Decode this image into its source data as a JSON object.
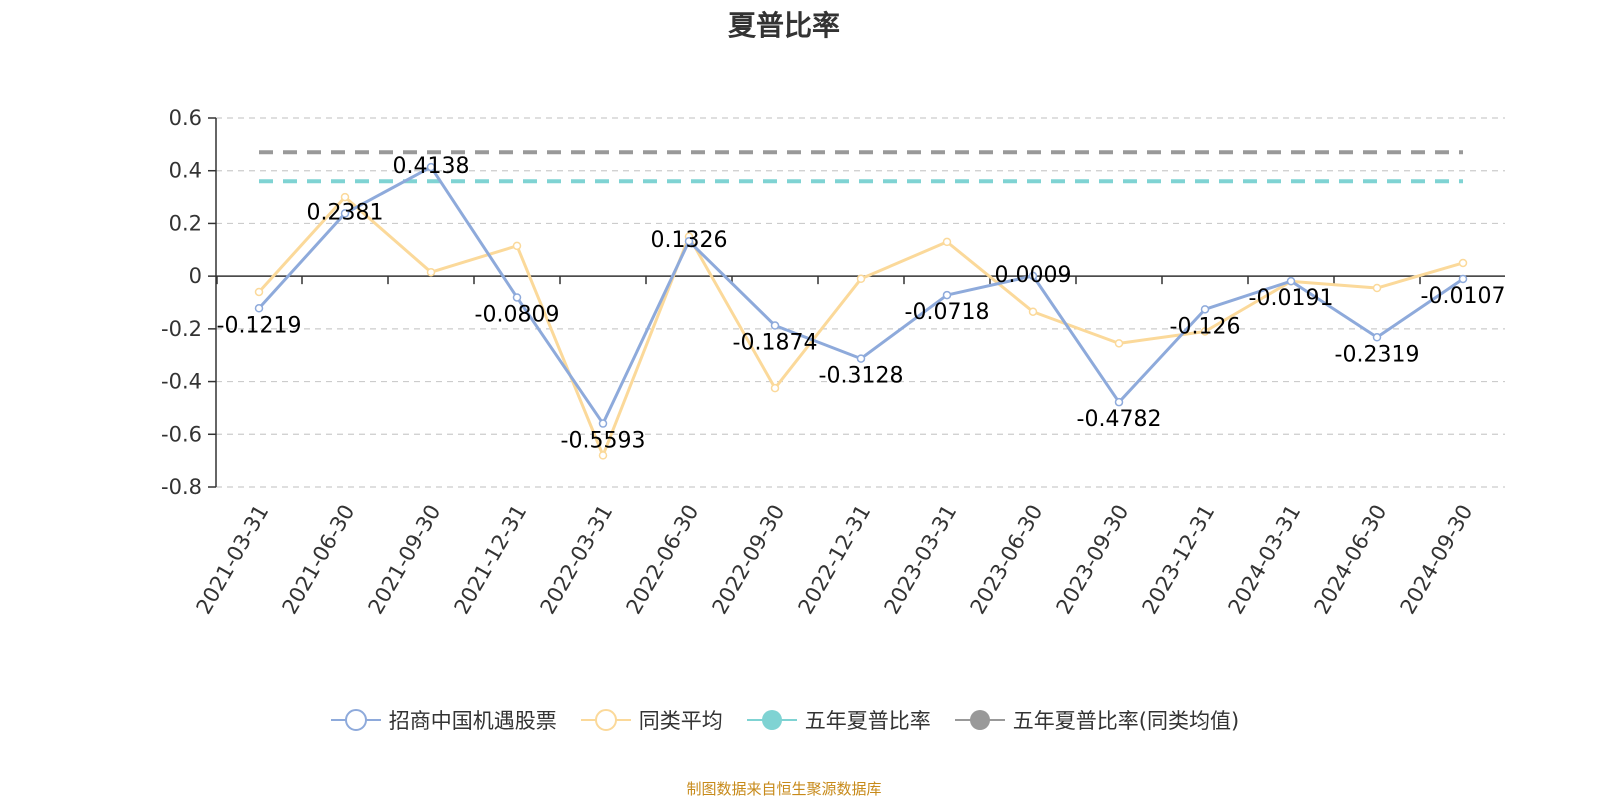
{
  "chart_data": {
    "type": "line",
    "title": "夏普比率",
    "categories": [
      "2021-03-31",
      "2021-06-30",
      "2021-09-30",
      "2021-12-31",
      "2022-03-31",
      "2022-06-30",
      "2022-09-30",
      "2022-12-31",
      "2023-03-31",
      "2023-06-30",
      "2023-09-30",
      "2023-12-31",
      "2024-03-31",
      "2024-06-30",
      "2024-09-30"
    ],
    "ylim": [
      -0.8,
      0.6
    ],
    "yticks": [
      "0.6",
      "0.4",
      "0.2",
      "0",
      "-0.2",
      "-0.4",
      "-0.6",
      "-0.8"
    ],
    "ytick_values": [
      0.6,
      0.4,
      0.2,
      0,
      -0.2,
      -0.4,
      -0.6,
      -0.8
    ],
    "grid": true,
    "legend_position": "bottom",
    "series": [
      {
        "name": "招商中国机遇股票",
        "color": "#8eaadb",
        "values": [
          -0.1219,
          0.2381,
          0.4138,
          -0.0809,
          -0.5593,
          0.1326,
          -0.1874,
          -0.3128,
          -0.0718,
          0.0009,
          -0.4782,
          -0.126,
          -0.0191,
          -0.2319,
          -0.0107
        ],
        "labels": [
          "-0.1219",
          "0.2381",
          "0.4138",
          "-0.0809",
          "-0.5593",
          "0.1326",
          "-0.1874",
          "-0.3128",
          "-0.0718",
          "0.0009",
          "-0.4782",
          "-0.126",
          "-0.0191",
          "-0.2319",
          "-0.0107"
        ]
      },
      {
        "name": "同类平均",
        "color": "#fbd99a",
        "values": [
          -0.06,
          0.3,
          0.015,
          0.115,
          -0.68,
          0.15,
          -0.425,
          -0.01,
          0.13,
          -0.135,
          -0.255,
          -0.21,
          -0.02,
          -0.045,
          0.05
        ]
      },
      {
        "name": "五年夏普比率",
        "color": "#7fd3d3",
        "constant": 0.36
      },
      {
        "name": "五年夏普比率(同类均值)",
        "color": "#999999",
        "constant": 0.47
      }
    ]
  },
  "source_note": "制图数据来自恒生聚源数据库"
}
